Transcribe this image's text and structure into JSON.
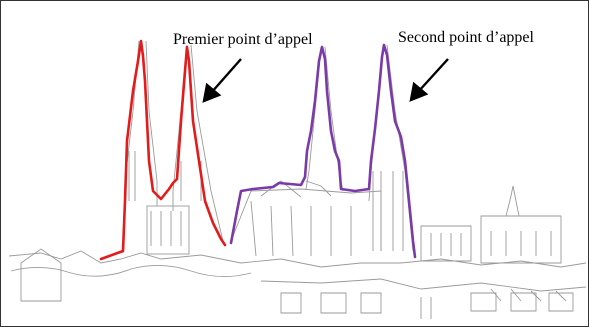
{
  "annotations": {
    "first_label": "Premier point d’appel",
    "second_label": "Second point d’appel"
  },
  "colors": {
    "first_outline": "#e31b1b",
    "second_outline": "#7a3aa8",
    "sketch_line": "#9a9a9a",
    "arrow": "#000000"
  }
}
